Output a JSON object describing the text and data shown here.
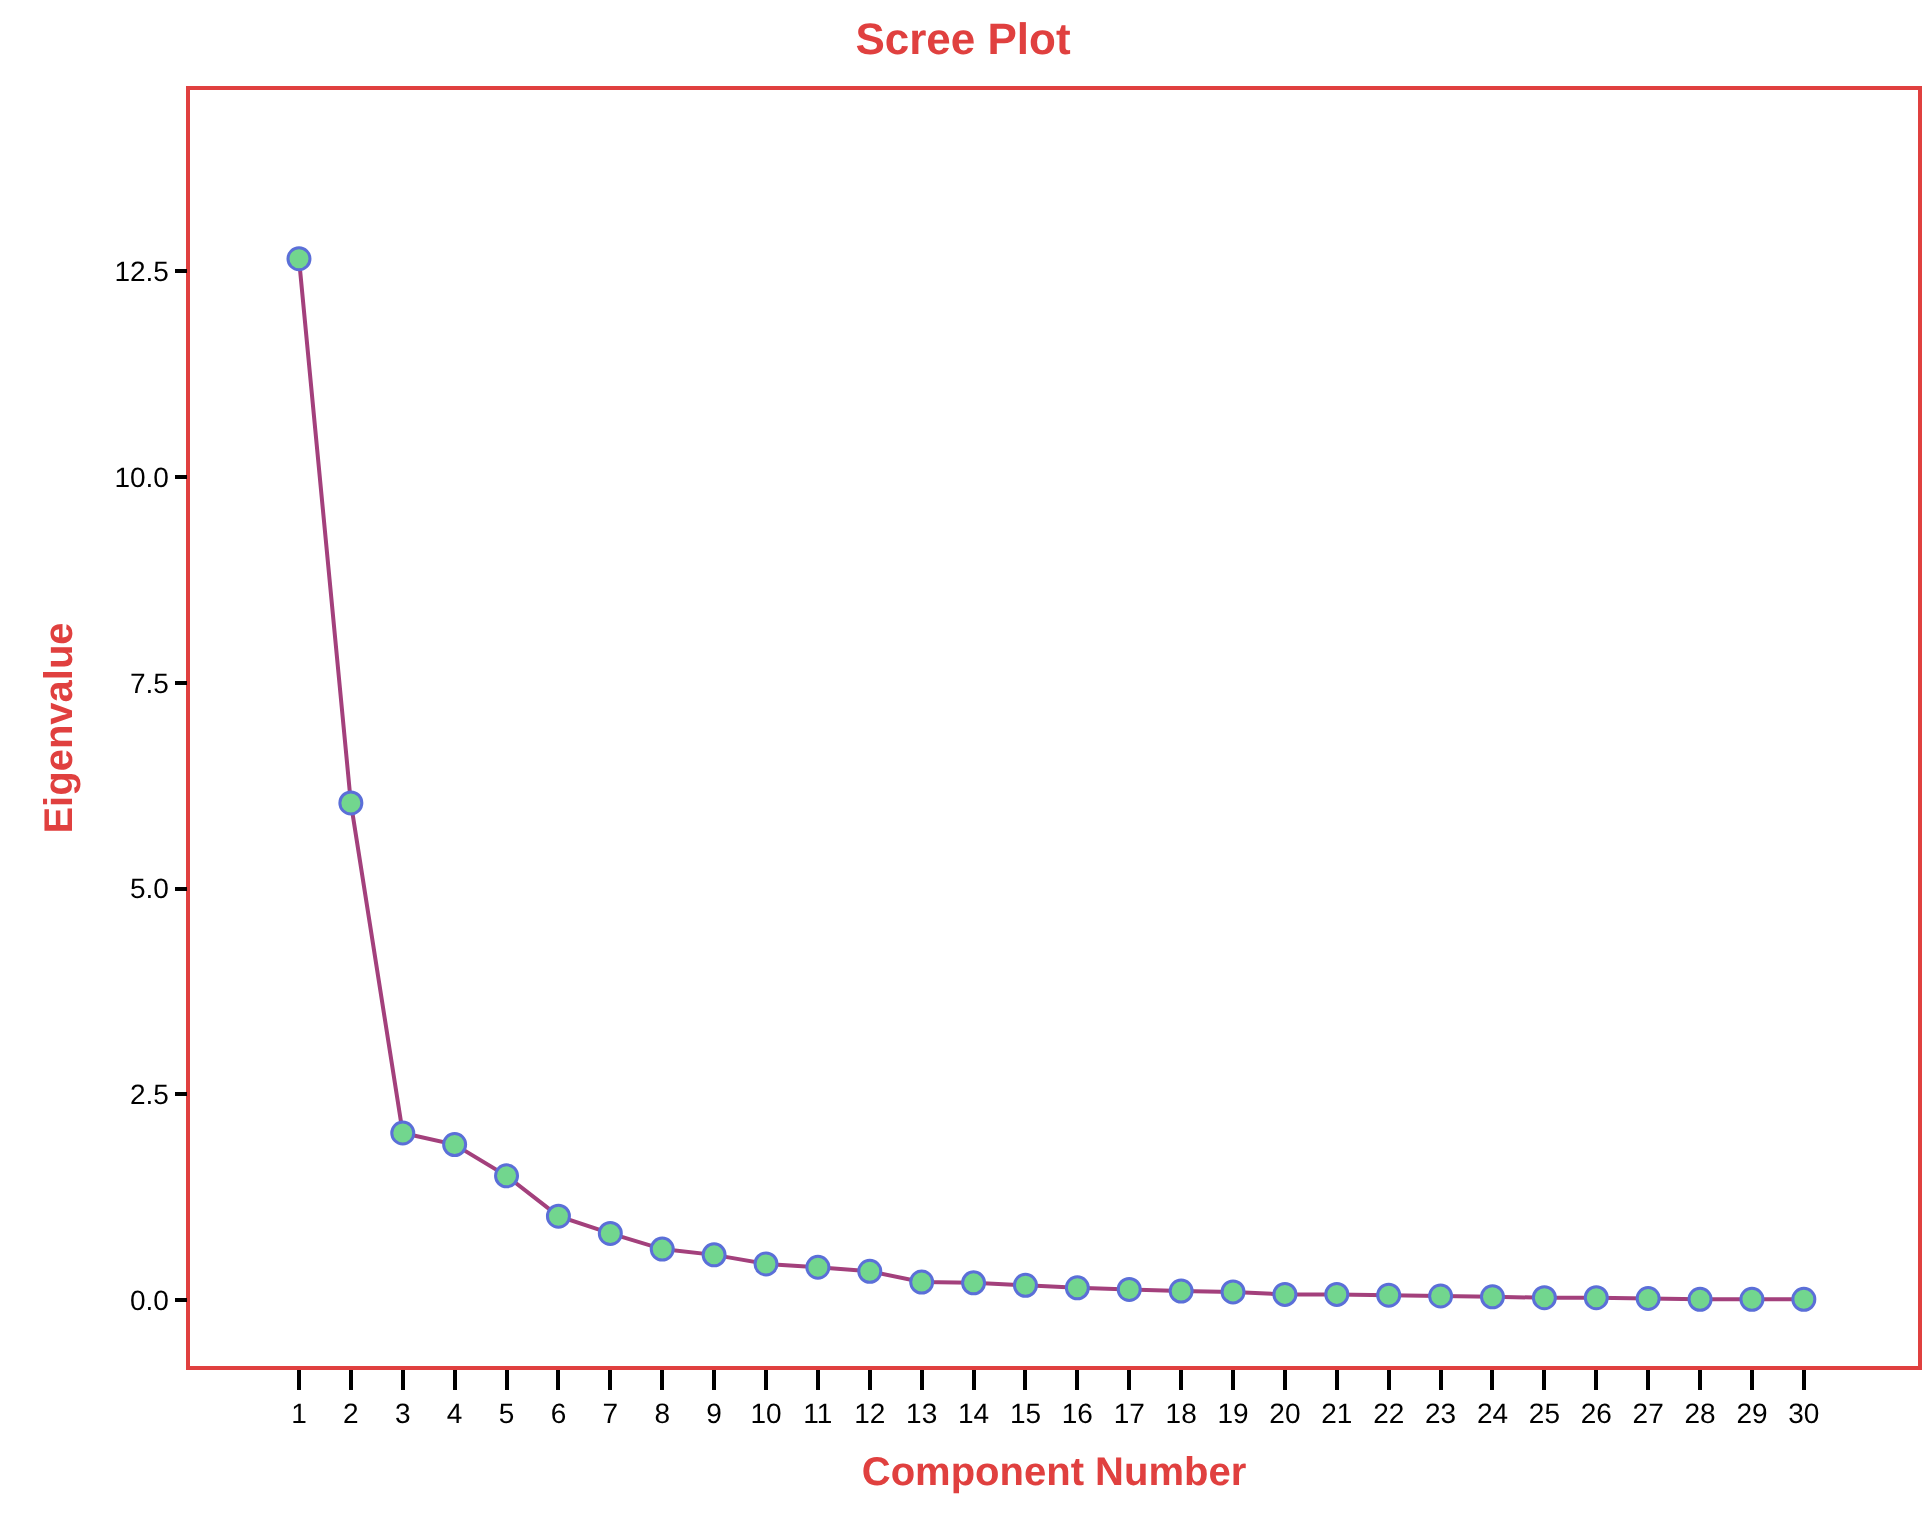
{
  "chart_data": {
    "type": "line",
    "title": "Scree Plot",
    "xlabel": "Component Number",
    "ylabel": "Eigenvalue",
    "x": [
      1,
      2,
      3,
      4,
      5,
      6,
      7,
      8,
      9,
      10,
      11,
      12,
      13,
      14,
      15,
      16,
      17,
      18,
      19,
      20,
      21,
      22,
      23,
      24,
      25,
      26,
      27,
      28,
      29,
      30
    ],
    "series": [
      {
        "color": "#a3407c",
        "values": [
          12.65,
          6.04,
          2.03,
          1.89,
          1.51,
          1.02,
          0.81,
          0.62,
          0.55,
          0.44,
          0.4,
          0.35,
          0.22,
          0.21,
          0.18,
          0.15,
          0.13,
          0.11,
          0.1,
          0.07,
          0.07,
          0.06,
          0.05,
          0.04,
          0.03,
          0.03,
          0.02,
          0.01,
          0.01,
          0.01
        ]
      }
    ],
    "xlim": [
      -1.1,
      32.2
    ],
    "xticks": [
      1,
      2,
      3,
      4,
      5,
      6,
      7,
      8,
      9,
      10,
      11,
      12,
      13,
      14,
      15,
      16,
      17,
      18,
      19,
      20,
      21,
      22,
      23,
      24,
      25,
      26,
      27,
      28,
      29,
      30
    ],
    "ylim": [
      -0.8,
      14.7
    ],
    "yticks": [
      {
        "value": 0,
        "label": "0.0"
      },
      {
        "value": 2.5,
        "label": "2.5"
      },
      {
        "value": 5,
        "label": "5.0"
      },
      {
        "value": 7.5,
        "label": "7.5"
      },
      {
        "value": 10,
        "label": "10.0"
      },
      {
        "value": 12.5,
        "label": "12.5"
      }
    ],
    "legend": false,
    "marker": "circle",
    "line_style": "solid"
  }
}
